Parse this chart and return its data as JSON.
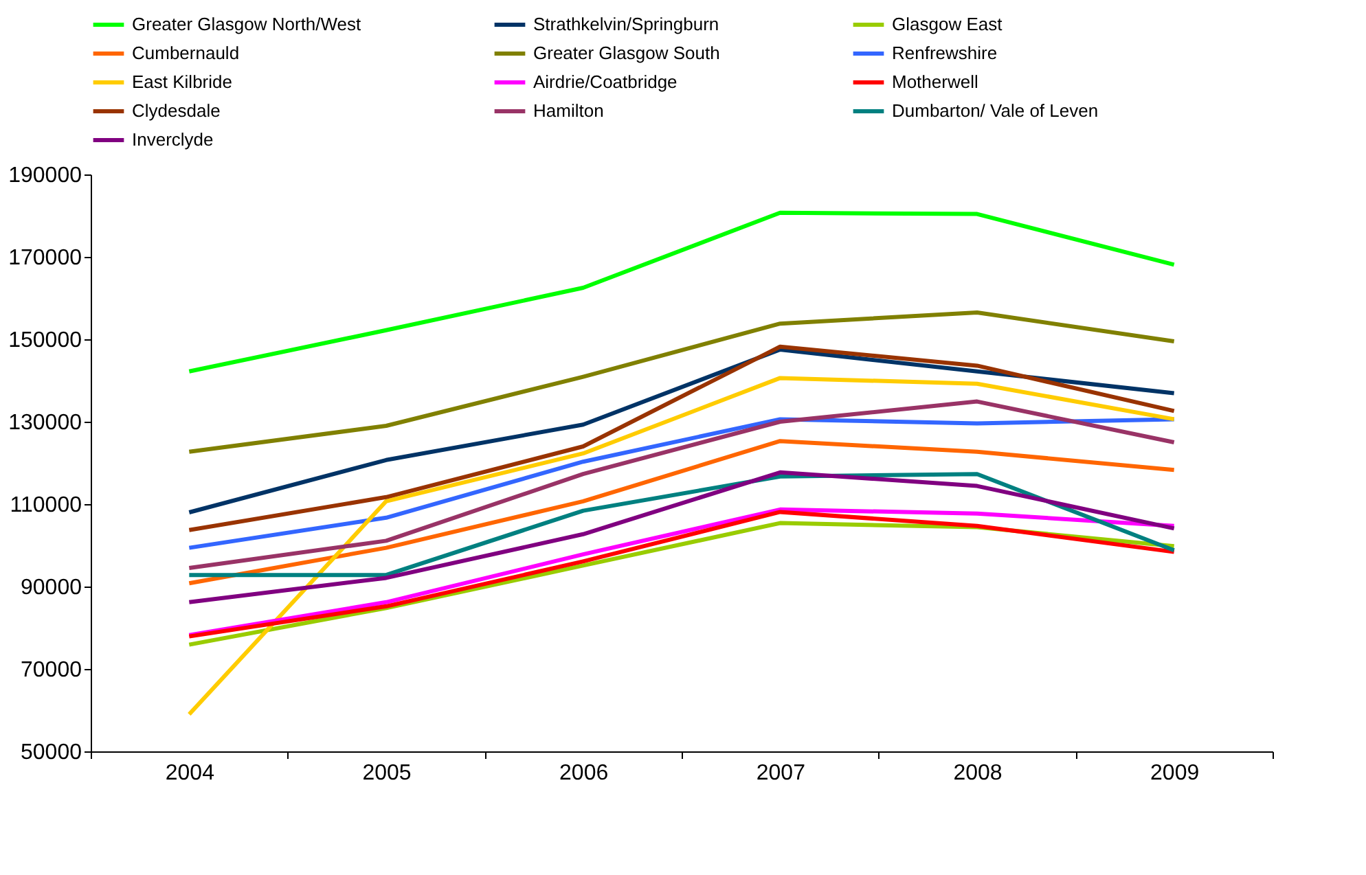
{
  "chart_data": {
    "type": "line",
    "categories": [
      "2004",
      "2005",
      "2006",
      "2007",
      "2008",
      "2009"
    ],
    "ylim": [
      50000,
      190000
    ],
    "yticks": [
      50000,
      70000,
      90000,
      110000,
      130000,
      150000,
      170000,
      190000
    ],
    "grid": false,
    "legend": "top",
    "marker": "none",
    "line_style": "solid",
    "series": [
      {
        "name": "Greater Glasgow North/West",
        "color": "#00ff00",
        "values": [
          142200,
          152200,
          162500,
          180700,
          180400,
          168100
        ]
      },
      {
        "name": "Strathkelvin/Springburn",
        "color": "#003366",
        "values": [
          108000,
          120700,
          129300,
          147500,
          142200,
          136900
        ]
      },
      {
        "name": "Glasgow East",
        "color": "#99cc00",
        "values": [
          75900,
          84800,
          95100,
          105400,
          104400,
          99800
        ]
      },
      {
        "name": "Cumbernauld",
        "color": "#ff6600",
        "values": [
          90800,
          99400,
          110700,
          125300,
          122700,
          118300
        ]
      },
      {
        "name": "Greater Glasgow South",
        "color": "#808000",
        "values": [
          122700,
          129000,
          140900,
          153800,
          156500,
          149500
        ]
      },
      {
        "name": "Renfrewshire",
        "color": "#3366ff",
        "values": [
          99400,
          106700,
          120300,
          130600,
          129600,
          130600
        ]
      },
      {
        "name": "East Kilbride",
        "color": "#ffcc00",
        "values": [
          59000,
          110700,
          122300,
          140600,
          139200,
          130600
        ]
      },
      {
        "name": "Airdrie/Coatbridge",
        "color": "#ff00ff",
        "values": [
          78200,
          86200,
          97800,
          108700,
          107700,
          104700
        ]
      },
      {
        "name": "Motherwell",
        "color": "#ff0000",
        "values": [
          77900,
          85200,
          96100,
          108100,
          104700,
          98400
        ]
      },
      {
        "name": "Clydesdale",
        "color": "#993300",
        "values": [
          103700,
          111700,
          124000,
          148200,
          143600,
          132600
        ]
      },
      {
        "name": "Hamilton",
        "color": "#993366",
        "values": [
          94500,
          101100,
          117300,
          130000,
          134900,
          125000
        ]
      },
      {
        "name": "Dumbarton/ Vale of Leven",
        "color": "#008080",
        "values": [
          92800,
          92800,
          108400,
          116700,
          117300,
          98800
        ]
      },
      {
        "name": "Inverclyde",
        "color": "#800080",
        "values": [
          86200,
          92100,
          102700,
          117700,
          114400,
          104100
        ]
      }
    ]
  }
}
